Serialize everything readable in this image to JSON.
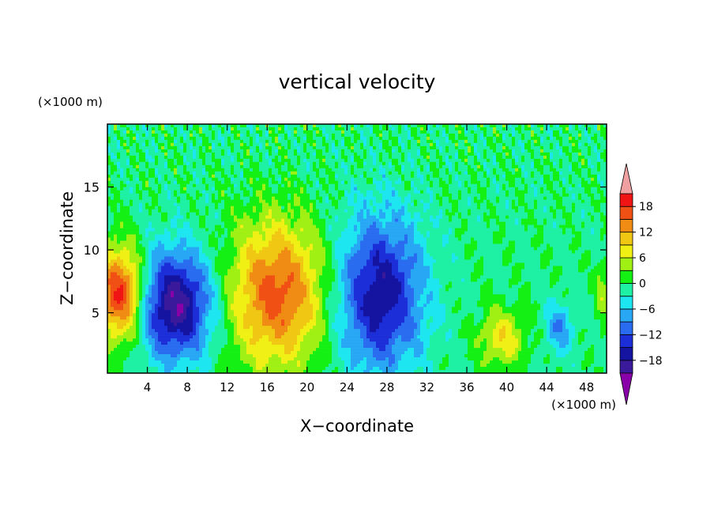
{
  "chart_data": {
    "type": "heatmap",
    "title": "vertical velocity",
    "xlabel": "X−coordinate",
    "ylabel": "Z−coordinate",
    "x_unit": "(×1000 m)",
    "y_unit": "(×1000 m)",
    "xlim": [
      0,
      50
    ],
    "ylim": [
      0.2,
      20
    ],
    "x_ticks": [
      4,
      8,
      12,
      16,
      20,
      24,
      28,
      32,
      36,
      40,
      44,
      48
    ],
    "y_ticks": [
      5,
      10,
      15
    ],
    "colorbar": {
      "levels": [
        -21,
        -18,
        -15,
        -12,
        -9,
        -6,
        -3,
        0,
        3,
        6,
        9,
        12,
        15,
        18,
        21
      ],
      "tick_labels": [
        "18",
        "12",
        "6",
        "0",
        "−6",
        "−12",
        "−18"
      ],
      "tick_values": [
        18,
        12,
        6,
        0,
        -6,
        -12,
        -18
      ],
      "colors": [
        "#8a00a8",
        "#3a1a9a",
        "#1414a0",
        "#1c2ed8",
        "#2a6cf0",
        "#28a8f4",
        "#1ee6f0",
        "#1ef0a4",
        "#14f014",
        "#a0f014",
        "#f0f014",
        "#f0c814",
        "#f08c14",
        "#f05014",
        "#f01414",
        "#f0a0a0"
      ],
      "extend": "both"
    },
    "features": [
      {
        "x": 1.3,
        "z": 6.5,
        "value": 20
      },
      {
        "x": 6.8,
        "z": 5.6,
        "value": -20
      },
      {
        "x": 17,
        "z": 6.5,
        "value": 17
      },
      {
        "x": 27.3,
        "z": 6.5,
        "value": -17
      },
      {
        "x": 39.5,
        "z": 3,
        "value": 9
      },
      {
        "x": 45.3,
        "z": 3.8,
        "value": -8
      },
      {
        "x": 49.7,
        "z": 6.5,
        "value": 5
      }
    ]
  }
}
